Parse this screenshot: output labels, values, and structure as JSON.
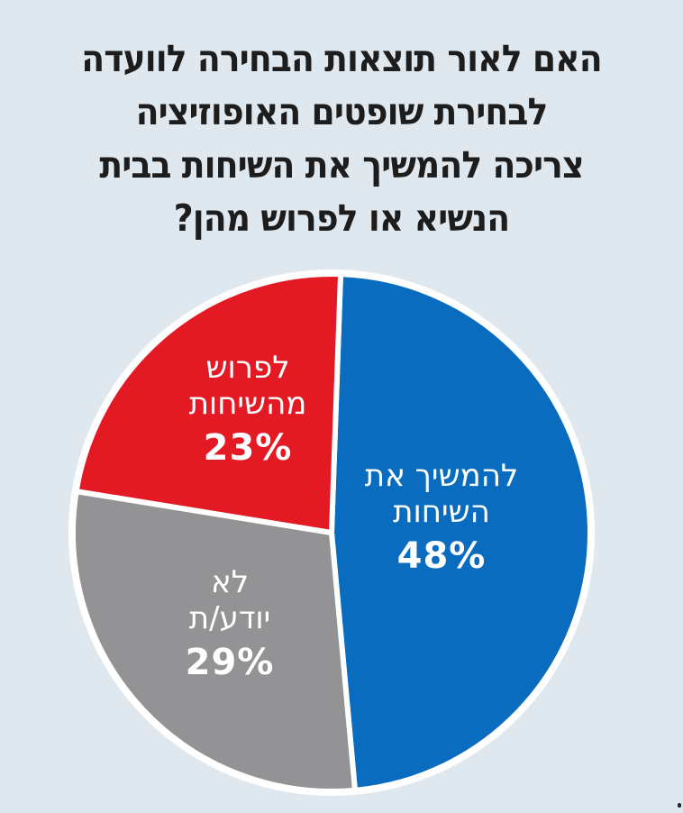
{
  "title": {
    "lines": [
      "האם לאור תוצאות הבחירה לוועדה",
      "לבחירת שופטים האופוזיציה",
      "צריכה להמשיך את השיחות בבית",
      "הנשיא או לפרוש מהן?"
    ]
  },
  "slices": [
    {
      "label_lines": [
        "להמשיך את",
        "השיחות"
      ],
      "value": 48,
      "value_text": "48%",
      "color": "#0a6cbf"
    },
    {
      "label_lines": [
        "לא",
        "יודע/ת"
      ],
      "value": 29,
      "value_text": "29%",
      "color": "#939395"
    },
    {
      "label_lines": [
        "לפרוש",
        "מהשיחות"
      ],
      "value": 23,
      "value_text": "23%",
      "color": "#e31a24"
    }
  ],
  "colors": {
    "background": "#dfe8ee",
    "separator": "#ffffff",
    "title_text": "#1d1d1d",
    "label_text": "#ffffff"
  },
  "chart_data": {
    "type": "pie",
    "title": "האם לאור תוצאות הבחירה לוועדה לבחירת שופטים האופוזיציה צריכה להמשיך את השיחות בבית הנשיא או לפרוש מהן?",
    "categories": [
      "להמשיך את השיחות",
      "לא יודע/ת",
      "לפרוש מהשיחות"
    ],
    "values": [
      48,
      29,
      23
    ],
    "unit": "%",
    "colors": [
      "#0a6cbf",
      "#939395",
      "#e31a24"
    ],
    "start_angle": "12 o'clock",
    "direction": "clockwise",
    "legend": "none (labels inside slices)"
  }
}
